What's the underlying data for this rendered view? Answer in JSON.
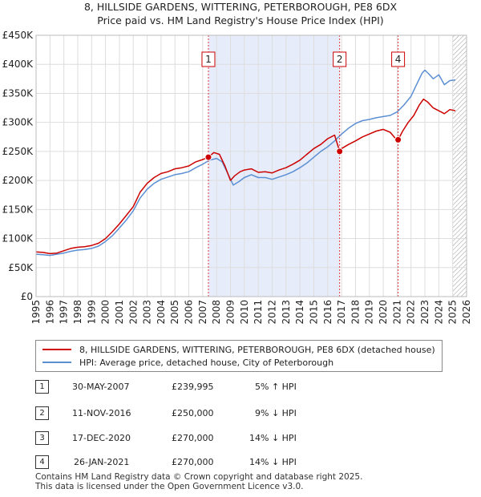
{
  "chart_data": {
    "type": "line",
    "title": "8, HILLSIDE GARDENS, WITTERING, PETERBOROUGH, PE8 6DX",
    "subtitle": "Price paid vs. HM Land Registry's House Price Index (HPI)",
    "xlabel": "",
    "ylabel": "",
    "xlim": [
      1995,
      2026
    ],
    "ylim": [
      0,
      450000
    ],
    "grid": true,
    "y_ticks": [
      0,
      50000,
      100000,
      150000,
      200000,
      250000,
      300000,
      350000,
      400000,
      450000
    ],
    "y_tick_labels": [
      "£0",
      "£50K",
      "£100K",
      "£150K",
      "£200K",
      "£250K",
      "£300K",
      "£350K",
      "£400K",
      "£450K"
    ],
    "x_ticks": [
      1995,
      1996,
      1997,
      1998,
      1999,
      2000,
      2001,
      2002,
      2003,
      2004,
      2005,
      2006,
      2007,
      2008,
      2009,
      2010,
      2011,
      2012,
      2013,
      2014,
      2015,
      2016,
      2017,
      2018,
      2019,
      2020,
      2021,
      2022,
      2023,
      2024,
      2025,
      2026
    ],
    "x_tick_labels": [
      "1995",
      "1996",
      "1997",
      "1998",
      "1999",
      "2000",
      "2001",
      "2002",
      "2003",
      "2004",
      "2005",
      "2006",
      "2007",
      "2008",
      "2009",
      "2010",
      "2011",
      "2012",
      "2013",
      "2014",
      "2015",
      "2016",
      "2017",
      "2018",
      "2019",
      "2020",
      "2021",
      "2022",
      "2023",
      "2024",
      "2025",
      "2026"
    ],
    "shaded_span": [
      2007.41,
      2016.86
    ],
    "hatched_from": 2025.0,
    "series": [
      {
        "name": "8, HILLSIDE GARDENS, WITTERING, PETERBOROUGH, PE8 6DX (detached house)",
        "color": "#cc0000",
        "x": [
          1995.0,
          1995.5,
          1996.0,
          1996.5,
          1997.0,
          1997.5,
          1998.0,
          1998.5,
          1999.0,
          1999.5,
          2000.0,
          2000.5,
          2001.0,
          2001.5,
          2002.0,
          2002.5,
          2003.0,
          2003.5,
          2004.0,
          2004.5,
          2005.0,
          2005.5,
          2006.0,
          2006.5,
          2007.0,
          2007.41,
          2007.8,
          2008.2,
          2008.6,
          2009.0,
          2009.3,
          2009.7,
          2010.0,
          2010.5,
          2011.0,
          2011.5,
          2012.0,
          2012.5,
          2013.0,
          2013.5,
          2014.0,
          2014.5,
          2015.0,
          2015.5,
          2016.0,
          2016.5,
          2016.86,
          2017.0,
          2017.5,
          2018.0,
          2018.5,
          2019.0,
          2019.5,
          2020.0,
          2020.5,
          2020.96,
          2021.07,
          2021.4,
          2021.8,
          2022.2,
          2022.6,
          2022.9,
          2023.2,
          2023.6,
          2024.0,
          2024.4,
          2024.8,
          2025.2
        ],
        "values": [
          77000,
          76000,
          74000,
          75000,
          79000,
          83000,
          85000,
          86000,
          88000,
          92000,
          100000,
          112000,
          125000,
          140000,
          155000,
          180000,
          195000,
          205000,
          212000,
          215000,
          220000,
          222000,
          225000,
          232000,
          236000,
          239995,
          248000,
          245000,
          225000,
          200000,
          208000,
          215000,
          218000,
          220000,
          214000,
          215000,
          213000,
          218000,
          222000,
          228000,
          235000,
          245000,
          255000,
          262000,
          272000,
          278000,
          250000,
          255000,
          262000,
          268000,
          275000,
          280000,
          285000,
          288000,
          283000,
          270000,
          270000,
          285000,
          300000,
          312000,
          330000,
          340000,
          335000,
          325000,
          320000,
          315000,
          322000,
          320000
        ]
      },
      {
        "name": "HPI: Average price, detached house, City of Peterborough",
        "color": "#5b8fd4",
        "x": [
          1995.0,
          1995.5,
          1996.0,
          1996.5,
          1997.0,
          1997.5,
          1998.0,
          1998.5,
          1999.0,
          1999.5,
          2000.0,
          2000.5,
          2001.0,
          2001.5,
          2002.0,
          2002.5,
          2003.0,
          2003.5,
          2004.0,
          2004.5,
          2005.0,
          2005.5,
          2006.0,
          2006.5,
          2007.0,
          2007.5,
          2008.0,
          2008.4,
          2008.8,
          2009.2,
          2009.6,
          2010.0,
          2010.5,
          2011.0,
          2011.5,
          2012.0,
          2012.5,
          2013.0,
          2013.5,
          2014.0,
          2014.5,
          2015.0,
          2015.5,
          2016.0,
          2016.5,
          2017.0,
          2017.5,
          2018.0,
          2018.5,
          2019.0,
          2019.5,
          2020.0,
          2020.5,
          2021.0,
          2021.5,
          2022.0,
          2022.4,
          2022.8,
          2023.0,
          2023.3,
          2023.6,
          2024.0,
          2024.4,
          2024.8,
          2025.2
        ],
        "values": [
          73000,
          72000,
          71000,
          73000,
          75000,
          78000,
          80000,
          81000,
          83000,
          87000,
          95000,
          105000,
          118000,
          132000,
          148000,
          170000,
          185000,
          195000,
          202000,
          206000,
          210000,
          212000,
          215000,
          222000,
          228000,
          235000,
          238000,
          232000,
          212000,
          192000,
          198000,
          205000,
          210000,
          205000,
          205000,
          202000,
          206000,
          210000,
          215000,
          222000,
          230000,
          240000,
          250000,
          258000,
          268000,
          280000,
          290000,
          298000,
          303000,
          305000,
          308000,
          310000,
          312000,
          318000,
          330000,
          345000,
          365000,
          385000,
          390000,
          383000,
          375000,
          382000,
          365000,
          372000,
          373000
        ]
      }
    ],
    "sales": [
      {
        "id": "1",
        "x": 2007.41,
        "value": 239995,
        "marker_on_chart": true
      },
      {
        "id": "2",
        "x": 2016.86,
        "value": 250000,
        "marker_on_chart": true
      },
      {
        "id": "3",
        "x": 2020.96,
        "value": 270000,
        "marker_on_chart": false
      },
      {
        "id": "4",
        "x": 2021.07,
        "value": 270000,
        "marker_on_chart": true
      }
    ]
  },
  "legend": {
    "series1_label": "8, HILLSIDE GARDENS, WITTERING, PETERBOROUGH, PE8 6DX (detached house)",
    "series2_label": "HPI: Average price, detached house, City of Peterborough"
  },
  "transactions": [
    {
      "num": "1",
      "date": "30-MAY-2007",
      "price": "£239,995",
      "hpi": "5% ↑ HPI"
    },
    {
      "num": "2",
      "date": "11-NOV-2016",
      "price": "£250,000",
      "hpi": "9% ↓ HPI"
    },
    {
      "num": "3",
      "date": "17-DEC-2020",
      "price": "£270,000",
      "hpi": "14% ↓ HPI"
    },
    {
      "num": "4",
      "date": "26-JAN-2021",
      "price": "£270,000",
      "hpi": "14% ↓ HPI"
    }
  ],
  "footer": {
    "line1": "Contains HM Land Registry data © Crown copyright and database right 2025.",
    "line2": "This data is licensed under the Open Government Licence v3.0."
  }
}
